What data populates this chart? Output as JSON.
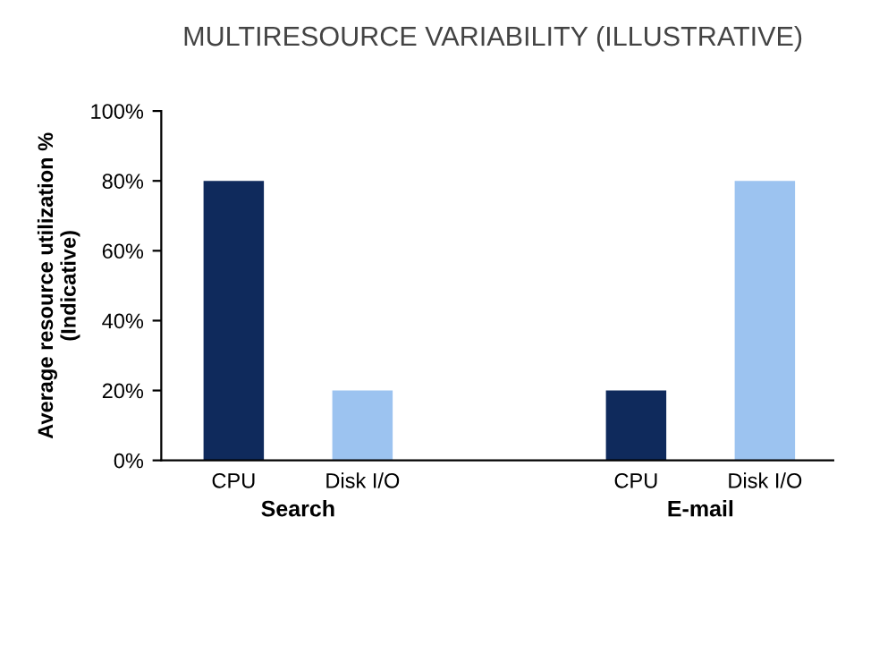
{
  "chart_data": {
    "type": "bar",
    "title": "MULTIRESOURCE VARIABILITY (ILLUSTRATIVE)",
    "ylabel": "Average resource utilization %\n(Indicative)",
    "categories": [
      "Search",
      "E-mail"
    ],
    "series": [
      {
        "name": "CPU",
        "color": "#0f2a5c",
        "values": [
          80,
          20
        ]
      },
      {
        "name": "Disk I/O",
        "color": "#9cc3f0",
        "values": [
          20,
          80
        ]
      }
    ],
    "ylim": [
      0,
      100
    ],
    "yticks": [
      {
        "value": 0,
        "label": "0%"
      },
      {
        "value": 20,
        "label": "20%"
      },
      {
        "value": 40,
        "label": "40%"
      },
      {
        "value": 60,
        "label": "60%"
      },
      {
        "value": 80,
        "label": "80%"
      },
      {
        "value": 100,
        "label": "100%"
      }
    ],
    "grid": false,
    "legend": false
  }
}
